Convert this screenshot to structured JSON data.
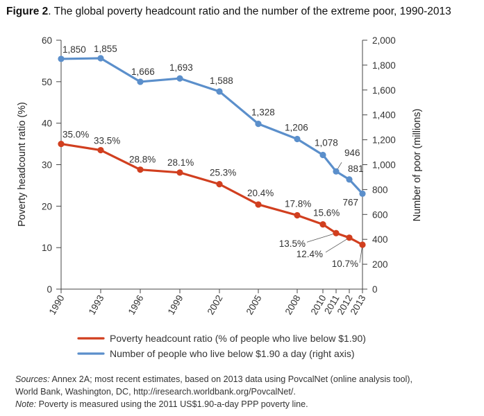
{
  "figure": {
    "label": "Figure 2",
    "title_rest": ". The global poverty headcount ratio and the number of the extreme poor, 1990-2013"
  },
  "notes": {
    "sources_label": "Sources:",
    "sources_text": " Annex 2A; most recent estimates, based on 2013 data using PovcalNet (online analysis tool),",
    "sources_line2": "World Bank, Washington, DC, http://iresearch.worldbank.org/PovcalNet/.",
    "note_label": "Note:",
    "note_text": " Poverty is measured using the 2011 US$1.90-a-day PPP poverty line."
  },
  "colors": {
    "headcount": "#d13f1f",
    "poor": "#5b8fcb",
    "axis": "#444444"
  },
  "chart_data": {
    "type": "line",
    "title": "The global poverty headcount ratio and the number of the extreme poor, 1990-2013",
    "x": [
      "1990",
      "1993",
      "1996",
      "1999",
      "2002",
      "2005",
      "2008",
      "2010",
      "2011",
      "2012",
      "2013"
    ],
    "xlabel": "",
    "ylabel_left": "Poverty headcount ratio (%)",
    "ylabel_right": "Number of poor (millions)",
    "ylim_left": [
      0,
      60
    ],
    "ylim_right": [
      0,
      2000
    ],
    "yticks_left": [
      "0",
      "10",
      "20",
      "30",
      "40",
      "50",
      "60"
    ],
    "yticks_right": [
      "0",
      "200",
      "400",
      "600",
      "800",
      "1,000",
      "1,200",
      "1,400",
      "1,600",
      "1,800",
      "2,000"
    ],
    "grid": false,
    "legend_position": "bottom",
    "series": [
      {
        "name": "Poverty headcount ratio (% of people who live below $1.90)",
        "axis": "left",
        "values": [
          35.0,
          33.5,
          28.8,
          28.1,
          25.3,
          20.4,
          17.8,
          15.6,
          13.5,
          12.4,
          10.7
        ],
        "labels": [
          "35.0%",
          "33.5%",
          "28.8%",
          "28.1%",
          "25.3%",
          "20.4%",
          "17.8%",
          "15.6%",
          "13.5%",
          "12.4%",
          "10.7%"
        ]
      },
      {
        "name": "Number of people who live below $1.90 a day (right axis)",
        "axis": "right",
        "values": [
          1850,
          1855,
          1666,
          1693,
          1588,
          1328,
          1206,
          1078,
          946,
          881,
          767
        ],
        "labels": [
          "1,850",
          "1,855",
          "1,666",
          "1,693",
          "1,588",
          "1,328",
          "1,206",
          "1,078",
          "946",
          "881",
          "767"
        ]
      }
    ]
  }
}
